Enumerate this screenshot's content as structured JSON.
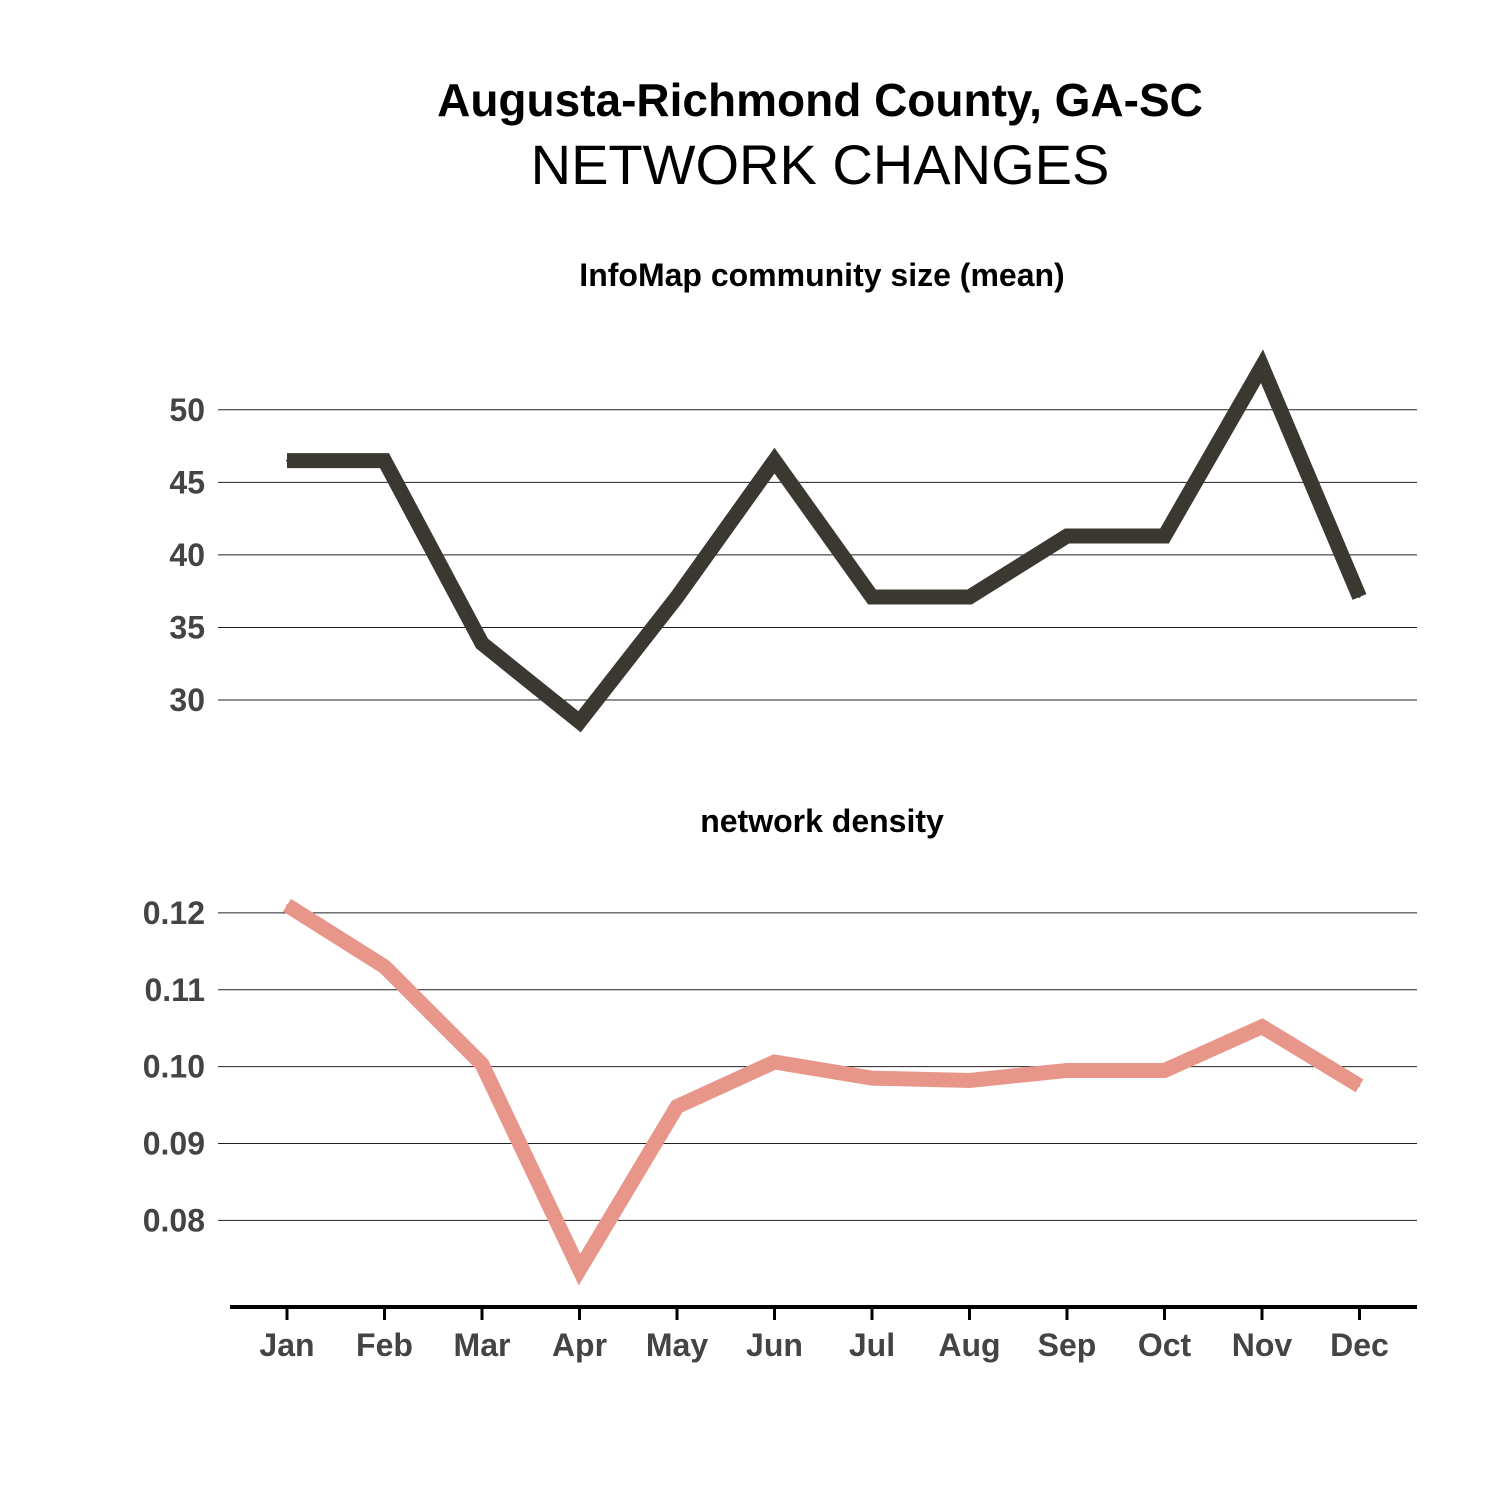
{
  "header": {
    "title": "Augusta-Richmond County, GA-SC",
    "subtitle": "NETWORK CHANGES"
  },
  "chart_data": [
    {
      "type": "line",
      "title": "InfoMap community size (mean)",
      "categories": [
        "Jan",
        "Feb",
        "Mar",
        "Apr",
        "May",
        "Jun",
        "Jul",
        "Aug",
        "Sep",
        "Oct",
        "Nov",
        "Dec"
      ],
      "values": [
        46.5,
        46.5,
        33.9,
        28.5,
        37.1,
        46.5,
        37.1,
        37.1,
        41.3,
        41.3,
        53.0,
        37.1
      ],
      "yticks": [
        30,
        35,
        40,
        45,
        50
      ],
      "ylim": [
        26.9,
        55.5
      ],
      "grid": true,
      "color": "#3b3831"
    },
    {
      "type": "line",
      "title": "network density",
      "categories": [
        "Jan",
        "Feb",
        "Mar",
        "Apr",
        "May",
        "Jun",
        "Jul",
        "Aug",
        "Sep",
        "Oct",
        "Nov",
        "Dec"
      ],
      "values": [
        0.121,
        0.113,
        0.1003,
        0.0736,
        0.0948,
        0.1006,
        0.0985,
        0.0982,
        0.0995,
        0.0995,
        0.1052,
        0.0975
      ],
      "yticks": [
        "0.08",
        "0.09",
        "0.10",
        "0.11",
        "0.12"
      ],
      "ylim": [
        0.0712,
        0.1248
      ],
      "grid": true,
      "color": "#e8968a"
    }
  ]
}
